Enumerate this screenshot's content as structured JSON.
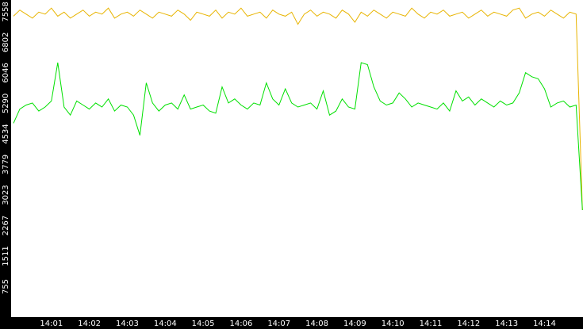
{
  "chart_data": {
    "type": "line",
    "categories": [
      null,
      null,
      null,
      null,
      null,
      null,
      "14:01",
      null,
      null,
      null,
      null,
      null,
      "14:02",
      null,
      null,
      null,
      null,
      null,
      "14:03",
      null,
      null,
      null,
      null,
      null,
      "14:04",
      null,
      null,
      null,
      null,
      null,
      "14:05",
      null,
      null,
      null,
      null,
      null,
      "14:06",
      null,
      null,
      null,
      null,
      null,
      "14:07",
      null,
      null,
      null,
      null,
      null,
      "14:08",
      null,
      null,
      null,
      null,
      null,
      "14:09",
      null,
      null,
      null,
      null,
      null,
      "14:10",
      null,
      null,
      null,
      null,
      null,
      "14:11",
      null,
      null,
      null,
      null,
      null,
      "14:12",
      null,
      null,
      null,
      null,
      null,
      "14:13",
      null,
      null,
      null,
      null,
      null,
      "14:14",
      null,
      null,
      null,
      null,
      null,
      null
    ],
    "series": [
      {
        "color": "#e8b400",
        "values": [
          7450,
          7600,
          7500,
          7400,
          7550,
          7500,
          7650,
          7450,
          7550,
          7400,
          7500,
          7600,
          7450,
          7550,
          7500,
          7650,
          7400,
          7500,
          7550,
          7450,
          7600,
          7500,
          7400,
          7550,
          7500,
          7450,
          7600,
          7500,
          7350,
          7550,
          7500,
          7450,
          7600,
          7400,
          7550,
          7500,
          7650,
          7450,
          7500,
          7550,
          7400,
          7600,
          7500,
          7450,
          7550,
          7250,
          7500,
          7600,
          7450,
          7550,
          7500,
          7400,
          7600,
          7500,
          7300,
          7550,
          7450,
          7600,
          7500,
          7400,
          7550,
          7500,
          7450,
          7650,
          7500,
          7400,
          7550,
          7500,
          7600,
          7450,
          7500,
          7550,
          7400,
          7500,
          7600,
          7450,
          7550,
          7500,
          7450,
          7600,
          7650,
          7400,
          7500,
          7550,
          7450,
          7600,
          7500,
          7400,
          7550,
          7500,
          2650
        ]
      },
      {
        "color": "#00e000",
        "values": [
          4800,
          5150,
          5250,
          5300,
          5100,
          5200,
          5350,
          6300,
          5200,
          5000,
          5350,
          5250,
          5150,
          5300,
          5200,
          5400,
          5100,
          5250,
          5200,
          5000,
          4500,
          5800,
          5300,
          5100,
          5250,
          5300,
          5150,
          5500,
          5150,
          5200,
          5250,
          5100,
          5050,
          5700,
          5300,
          5400,
          5250,
          5150,
          5300,
          5250,
          5800,
          5400,
          5250,
          5650,
          5300,
          5200,
          5250,
          5300,
          5150,
          5600,
          5000,
          5100,
          5400,
          5200,
          5150,
          6300,
          6250,
          5700,
          5350,
          5250,
          5300,
          5550,
          5400,
          5200,
          5300,
          5250,
          5200,
          5150,
          5300,
          5100,
          5600,
          5350,
          5450,
          5250,
          5400,
          5300,
          5200,
          5350,
          5250,
          5300,
          5550,
          6050,
          5950,
          5900,
          5650,
          5200,
          5300,
          5350,
          5200,
          5250,
          2650
        ]
      }
    ],
    "ylim": [
      0,
      7850
    ],
    "yticks": [
      755,
      1511,
      2267,
      3023,
      3779,
      4534,
      5290,
      6046,
      6802,
      7558
    ],
    "grid": false
  }
}
